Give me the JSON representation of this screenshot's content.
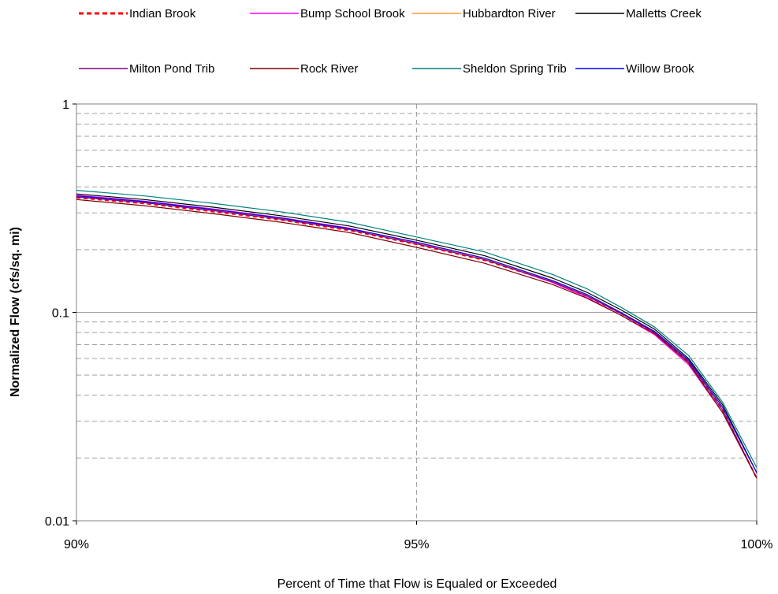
{
  "chart_data": {
    "type": "line",
    "xlabel": "Percent of Time that Flow is Equaled or Exceeded",
    "ylabel": "Normalized Flow (cfs/sq. mi)",
    "xlim": [
      90,
      100
    ],
    "ylim": [
      0.01,
      1
    ],
    "y_scale": "log",
    "x_ticks": [
      "90%",
      "95%",
      "100%"
    ],
    "y_ticks": [
      "0.01",
      "0.1",
      "1"
    ],
    "grid": {
      "major": true,
      "minor_dashed": true
    },
    "legend_position": "top",
    "x": [
      90,
      91,
      92,
      93,
      94,
      95,
      96,
      97,
      97.5,
      98,
      98.5,
      99,
      99.5,
      100
    ],
    "series": [
      {
        "name": "Indian Brook",
        "color": "#ff0000",
        "style": "dashed",
        "values": [
          0.355,
          0.333,
          0.305,
          0.278,
          0.248,
          0.212,
          0.178,
          0.14,
          0.12,
          0.099,
          0.08,
          0.058,
          0.034,
          0.016
        ]
      },
      {
        "name": "Bump School Brook",
        "color": "#ff00ff",
        "style": "solid",
        "values": [
          0.365,
          0.342,
          0.314,
          0.285,
          0.254,
          0.215,
          0.18,
          0.139,
          0.118,
          0.097,
          0.078,
          0.056,
          0.033,
          0.016
        ]
      },
      {
        "name": "Hubbardton River",
        "color": "#ff9933",
        "style": "solid",
        "values": [
          0.36,
          0.338,
          0.31,
          0.282,
          0.251,
          0.214,
          0.18,
          0.141,
          0.121,
          0.1,
          0.081,
          0.059,
          0.035,
          0.017
        ]
      },
      {
        "name": "Malletts Creek",
        "color": "#000000",
        "style": "solid",
        "values": [
          0.37,
          0.348,
          0.32,
          0.291,
          0.26,
          0.222,
          0.187,
          0.146,
          0.125,
          0.103,
          0.083,
          0.06,
          0.036,
          0.017
        ]
      },
      {
        "name": "Milton Pond Trib",
        "color": "#800080",
        "style": "solid",
        "values": [
          0.358,
          0.336,
          0.308,
          0.28,
          0.25,
          0.213,
          0.179,
          0.14,
          0.12,
          0.099,
          0.08,
          0.058,
          0.034,
          0.016
        ]
      },
      {
        "name": "Rock River",
        "color": "#800000",
        "style": "solid",
        "values": [
          0.348,
          0.325,
          0.298,
          0.271,
          0.242,
          0.205,
          0.172,
          0.136,
          0.117,
          0.097,
          0.079,
          0.057,
          0.033,
          0.016
        ]
      },
      {
        "name": "Sheldon Spring Trib",
        "color": "#008080",
        "style": "solid",
        "values": [
          0.385,
          0.362,
          0.334,
          0.304,
          0.271,
          0.23,
          0.195,
          0.152,
          0.13,
          0.106,
          0.085,
          0.062,
          0.037,
          0.018
        ]
      },
      {
        "name": "Willow Brook",
        "color": "#0000ff",
        "style": "solid",
        "values": [
          0.362,
          0.34,
          0.312,
          0.284,
          0.253,
          0.217,
          0.182,
          0.142,
          0.122,
          0.1,
          0.081,
          0.059,
          0.035,
          0.017
        ]
      }
    ]
  }
}
